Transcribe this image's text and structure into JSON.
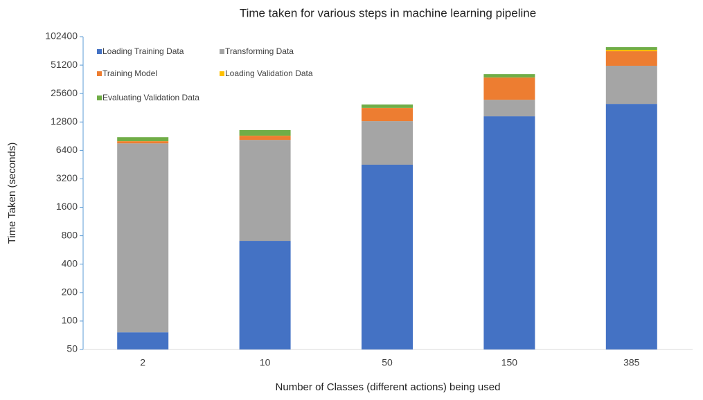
{
  "chart_data": {
    "type": "bar",
    "stacked": true,
    "title": "Time taken for various steps in machine learning pipeline",
    "x_label": "Number of Classes (different actions) being used",
    "y_label": "Time Taken (seconds)",
    "categories": [
      "2",
      "10",
      "50",
      "150",
      "385"
    ],
    "series": [
      {
        "name": "Loading Training Data",
        "color": "#4472c4",
        "values": [
          76,
          706,
          4520,
          14700,
          19900
        ]
      },
      {
        "name": "Transforming Data",
        "color": "#a5a5a5",
        "values": [
          7524,
          7560,
          8540,
          7300,
          30500
        ]
      },
      {
        "name": "Training Model",
        "color": "#ed7d31",
        "values": [
          400,
          890,
          4940,
          15800,
          21400
        ]
      },
      {
        "name": "Loading Validation Data",
        "color": "#ffc000",
        "values": [
          20,
          20,
          50,
          100,
          2500
        ]
      },
      {
        "name": "Evaluating Validation Data",
        "color": "#70ad47",
        "values": [
          820,
          1340,
          1550,
          3200,
          5100
        ]
      }
    ],
    "ylim": [
      50,
      102400
    ],
    "yticks": [
      50,
      100,
      200,
      400,
      800,
      1600,
      3200,
      6400,
      12800,
      25600,
      51200,
      102400
    ],
    "log_scale": true,
    "grid": false,
    "legend": "top-left"
  }
}
